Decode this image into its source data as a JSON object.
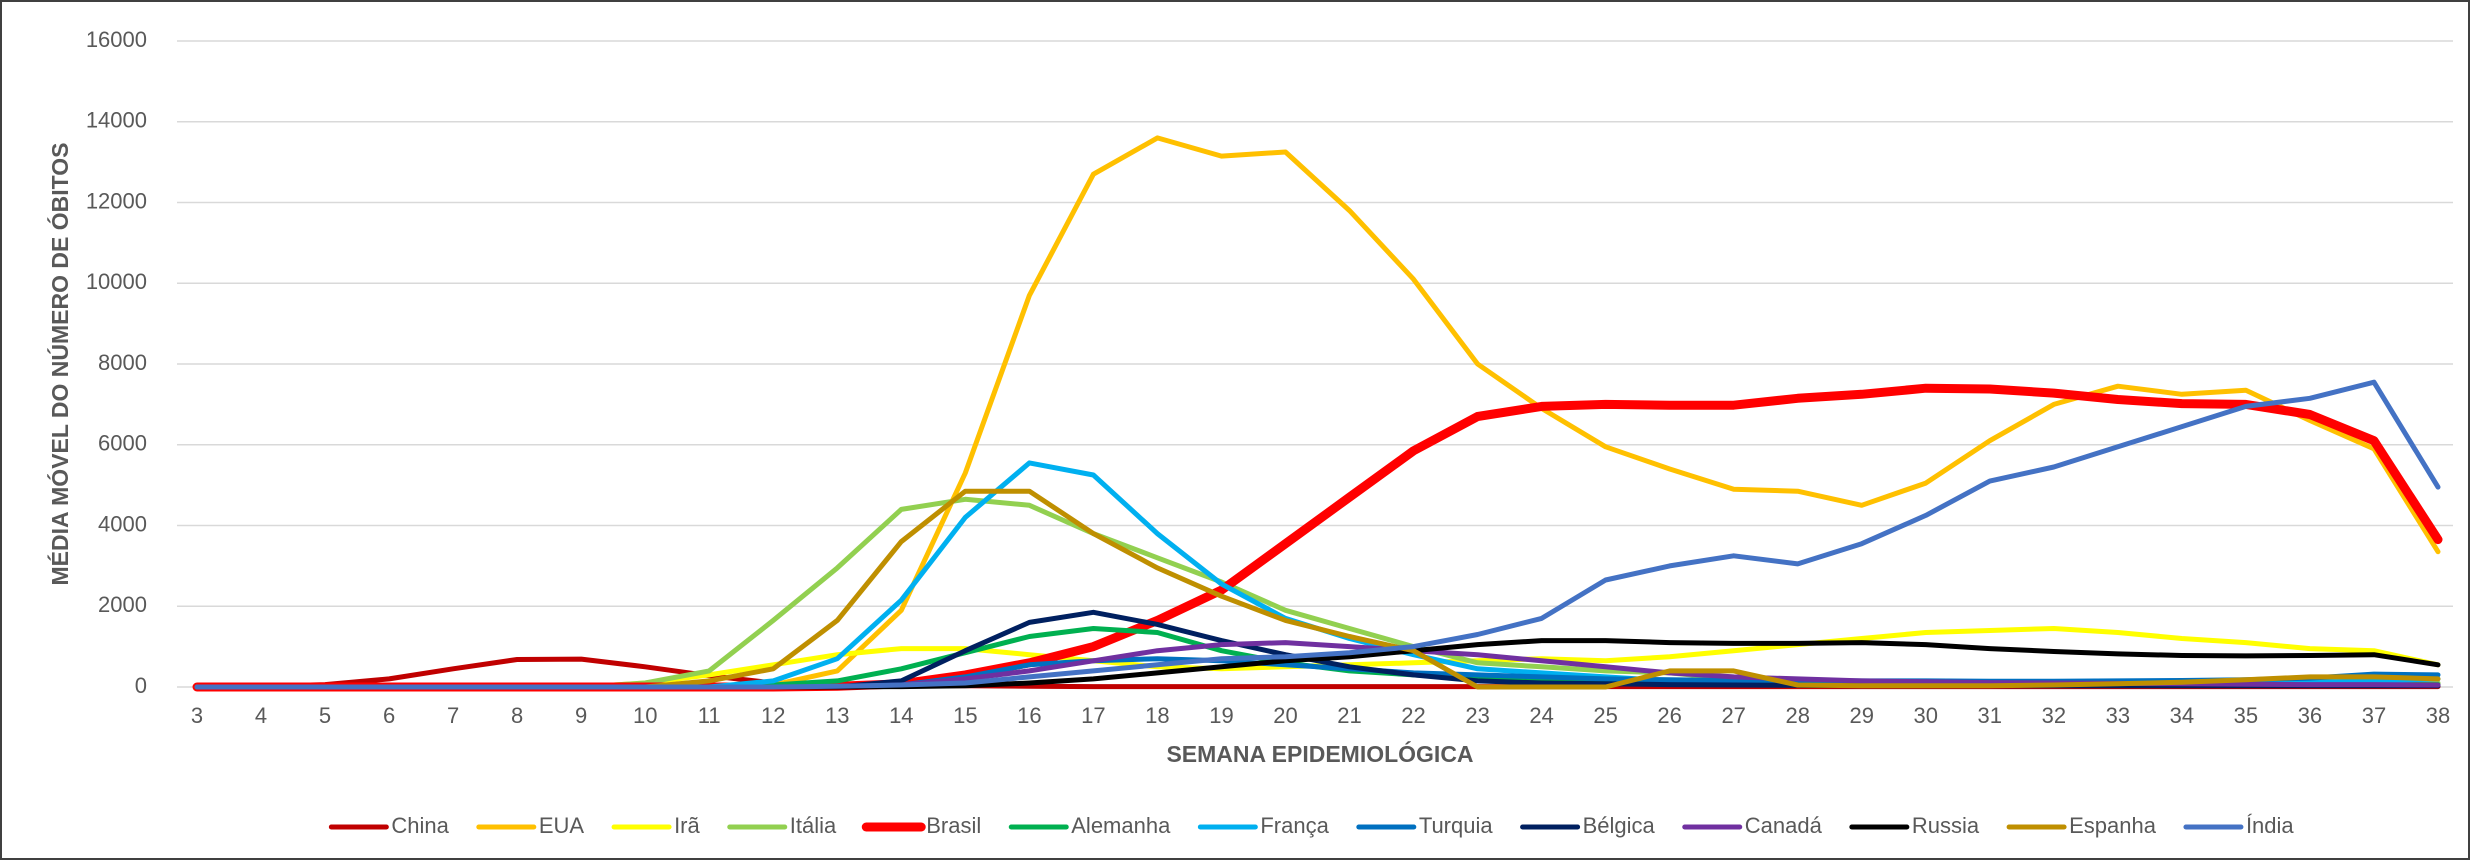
{
  "chart_data": {
    "type": "line",
    "xlabel": "SEMANA EPIDEMIOLÓGICA",
    "ylabel": "MÉDIA MÓVEL DO NÚMERO DE ÓBITOS",
    "categories": [
      3,
      4,
      5,
      6,
      7,
      8,
      9,
      10,
      11,
      12,
      13,
      14,
      15,
      16,
      17,
      18,
      19,
      20,
      21,
      22,
      23,
      24,
      25,
      26,
      27,
      28,
      29,
      30,
      31,
      32,
      33,
      34,
      35,
      36,
      37,
      38
    ],
    "ylim": [
      0,
      16000
    ],
    "yticks": [
      0,
      2000,
      4000,
      6000,
      8000,
      10000,
      12000,
      14000,
      16000
    ],
    "grid": true,
    "legend": "bottom",
    "series": [
      {
        "name": "China",
        "color": "#c00000",
        "linewidth": 5,
        "values": [
          20,
          20,
          60,
          200,
          450,
          680,
          690,
          500,
          280,
          100,
          60,
          40,
          30,
          20,
          10,
          10,
          10,
          10,
          10,
          10,
          10,
          10,
          10,
          10,
          10,
          10,
          10,
          10,
          10,
          10,
          10,
          10,
          10,
          10,
          10,
          10
        ]
      },
      {
        "name": "EUA",
        "color": "#ffc000",
        "linewidth": 5,
        "values": [
          0,
          0,
          0,
          0,
          0,
          0,
          0,
          0,
          0,
          50,
          400,
          1900,
          5300,
          9700,
          12700,
          13600,
          13150,
          13250,
          11800,
          10100,
          8000,
          6900,
          5950,
          5400,
          4900,
          4850,
          4500,
          5050,
          6100,
          7000,
          7450,
          7250,
          7350,
          6600,
          5900,
          3350
        ]
      },
      {
        "name": "Irã",
        "color": "#ffff00",
        "linewidth": 5,
        "values": [
          0,
          0,
          0,
          0,
          0,
          0,
          0,
          100,
          300,
          550,
          800,
          950,
          950,
          800,
          650,
          500,
          450,
          500,
          550,
          600,
          650,
          700,
          650,
          750,
          900,
          1050,
          1200,
          1350,
          1400,
          1450,
          1350,
          1200,
          1100,
          950,
          900,
          550
        ]
      },
      {
        "name": "Itália",
        "color": "#92d050",
        "linewidth": 5,
        "values": [
          0,
          0,
          0,
          0,
          0,
          0,
          0,
          100,
          400,
          1650,
          2950,
          4400,
          4650,
          4500,
          3800,
          3200,
          2600,
          1900,
          1450,
          1000,
          600,
          500,
          400,
          350,
          200,
          100,
          100,
          80,
          80,
          80,
          80,
          80,
          90,
          100,
          100,
          100
        ]
      },
      {
        "name": "Brasil",
        "color": "#ff0000",
        "linewidth": 9,
        "values": [
          0,
          0,
          0,
          0,
          0,
          0,
          0,
          0,
          0,
          0,
          20,
          80,
          300,
          600,
          1000,
          1650,
          2400,
          3550,
          4700,
          5850,
          6700,
          6950,
          7000,
          6980,
          6980,
          7150,
          7250,
          7400,
          7380,
          7280,
          7120,
          7020,
          7000,
          6750,
          6100,
          3650
        ]
      },
      {
        "name": "Alemanha",
        "color": "#00b050",
        "linewidth": 5,
        "values": [
          0,
          0,
          0,
          0,
          0,
          0,
          0,
          0,
          0,
          50,
          150,
          450,
          850,
          1250,
          1450,
          1350,
          900,
          600,
          400,
          300,
          200,
          150,
          100,
          80,
          60,
          50,
          50,
          50,
          50,
          50,
          50,
          50,
          50,
          50,
          60,
          60
        ]
      },
      {
        "name": "França",
        "color": "#00b0f0",
        "linewidth": 5,
        "values": [
          0,
          0,
          0,
          0,
          0,
          0,
          0,
          0,
          0,
          150,
          700,
          2150,
          4200,
          5550,
          5250,
          3800,
          2550,
          1700,
          1200,
          800,
          450,
          350,
          250,
          150,
          100,
          80,
          70,
          60,
          60,
          60,
          60,
          80,
          100,
          120,
          150,
          200
        ]
      },
      {
        "name": "Turquia",
        "color": "#0070c0",
        "linewidth": 5,
        "values": [
          0,
          0,
          0,
          0,
          0,
          0,
          0,
          0,
          0,
          0,
          0,
          50,
          250,
          550,
          650,
          700,
          650,
          550,
          450,
          350,
          300,
          250,
          200,
          180,
          160,
          150,
          150,
          150,
          140,
          140,
          150,
          160,
          180,
          220,
          320,
          300
        ]
      },
      {
        "name": "Bélgica",
        "color": "#002060",
        "linewidth": 5,
        "values": [
          0,
          0,
          0,
          0,
          0,
          0,
          0,
          0,
          0,
          0,
          0,
          150,
          900,
          1600,
          1850,
          1550,
          1150,
          800,
          500,
          300,
          150,
          100,
          80,
          60,
          50,
          40,
          30,
          30,
          30,
          30,
          30,
          30,
          30,
          30,
          30,
          30
        ]
      },
      {
        "name": "Canadá",
        "color": "#7030a0",
        "linewidth": 5,
        "values": [
          0,
          0,
          0,
          0,
          0,
          0,
          0,
          0,
          0,
          0,
          0,
          50,
          200,
          400,
          650,
          900,
          1050,
          1100,
          1000,
          900,
          800,
          650,
          500,
          350,
          250,
          200,
          150,
          130,
          110,
          100,
          90,
          80,
          70,
          60,
          60,
          50
        ]
      },
      {
        "name": "Russia",
        "color": "#000000",
        "linewidth": 5,
        "values": [
          0,
          0,
          0,
          0,
          0,
          0,
          0,
          0,
          0,
          0,
          0,
          10,
          30,
          100,
          200,
          350,
          500,
          650,
          750,
          900,
          1050,
          1150,
          1150,
          1100,
          1080,
          1080,
          1100,
          1050,
          950,
          880,
          820,
          780,
          770,
          780,
          800,
          550
        ]
      },
      {
        "name": "Espanha",
        "color": "#bf8f00",
        "linewidth": 5,
        "values": [
          0,
          0,
          0,
          0,
          0,
          0,
          0,
          0,
          150,
          450,
          1650,
          3600,
          4850,
          4850,
          3800,
          2950,
          2250,
          1650,
          1250,
          900,
          0,
          0,
          0,
          400,
          400,
          50,
          30,
          30,
          30,
          50,
          80,
          120,
          180,
          250,
          250,
          200
        ]
      },
      {
        "name": "Índia",
        "color": "#4472c4",
        "linewidth": 5,
        "values": [
          0,
          0,
          0,
          0,
          0,
          0,
          0,
          0,
          0,
          0,
          20,
          50,
          100,
          250,
          400,
          550,
          700,
          750,
          850,
          1000,
          1300,
          1700,
          2650,
          3000,
          3250,
          3050,
          3550,
          4250,
          5100,
          5450,
          5950,
          6450,
          6950,
          7150,
          7550,
          4950
        ]
      }
    ]
  }
}
